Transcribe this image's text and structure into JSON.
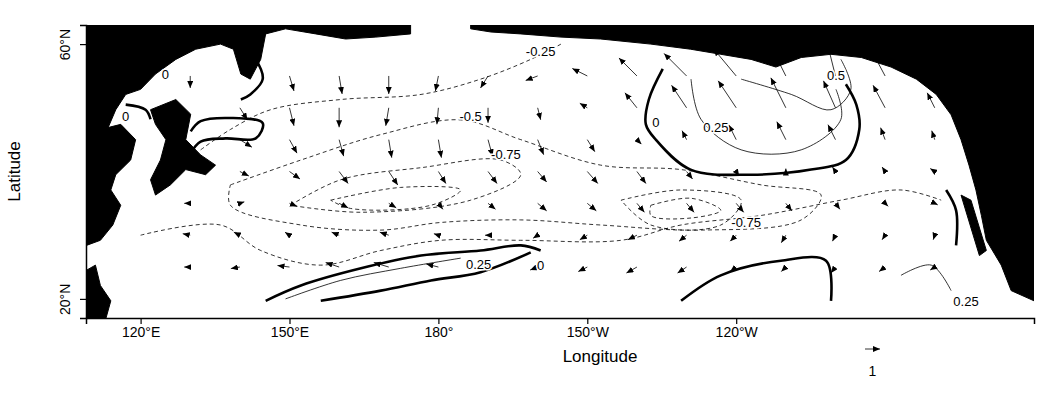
{
  "chart_data": {
    "type": "contour",
    "x_label": "Longitude",
    "y_label": "Latitude",
    "xlim": [
      109,
      300
    ],
    "ylim": [
      17,
      63
    ],
    "xticks": [
      {
        "value": 120,
        "label": "120°E"
      },
      {
        "value": 150,
        "label": "150°E"
      },
      {
        "value": 180,
        "label": "180°"
      },
      {
        "value": 210,
        "label": "150°W"
      },
      {
        "value": 240,
        "label": "120°W"
      }
    ],
    "yticks": [
      {
        "value": 20,
        "label": "20°N"
      },
      {
        "value": 60,
        "label": "60°N"
      }
    ],
    "reference_vector": 1,
    "land": [
      [
        [
          109.1,
          63.2
        ],
        [
          174.4,
          63.2
        ],
        [
          174.4,
          61.6
        ],
        [
          167.4,
          61.1
        ],
        [
          161.3,
          60.8
        ],
        [
          155.3,
          61.6
        ],
        [
          149.2,
          62.4
        ],
        [
          145.2,
          61.6
        ],
        [
          144.2,
          57.6
        ],
        [
          142.1,
          54.5
        ],
        [
          140.2,
          55.3
        ],
        [
          138.7,
          59.2
        ],
        [
          136.1,
          60
        ],
        [
          131.1,
          59.2
        ],
        [
          127.1,
          57.6
        ],
        [
          123,
          55.3
        ],
        [
          120,
          52.9
        ],
        [
          117,
          52.1
        ],
        [
          115,
          49.7
        ],
        [
          113.3,
          46.6
        ],
        [
          109.1,
          45.8
        ]
      ],
      [
        [
          122,
          49.7
        ],
        [
          127.1,
          51.3
        ],
        [
          130.1,
          49
        ],
        [
          129.1,
          45
        ],
        [
          132.1,
          42.6
        ],
        [
          135.1,
          41
        ],
        [
          133.1,
          39.5
        ],
        [
          129.1,
          40.3
        ],
        [
          126,
          37.9
        ],
        [
          123,
          36.3
        ],
        [
          122,
          38.7
        ],
        [
          124,
          41.8
        ],
        [
          125.1,
          45
        ],
        [
          123,
          47.4
        ]
      ],
      [
        [
          109.1,
          45.8
        ],
        [
          111.9,
          46.6
        ],
        [
          116,
          47.4
        ],
        [
          119,
          45
        ],
        [
          118,
          41.8
        ],
        [
          115,
          39.5
        ],
        [
          114,
          37.1
        ],
        [
          116,
          34.7
        ],
        [
          114.4,
          31.6
        ],
        [
          111.9,
          29.2
        ],
        [
          109.1,
          28.4
        ]
      ],
      [
        [
          109.1,
          24.5
        ],
        [
          110.9,
          25.3
        ],
        [
          111.9,
          22.1
        ],
        [
          114,
          19.7
        ],
        [
          113,
          16.9
        ],
        [
          109.1,
          16.9
        ]
      ],
      [
        [
          186.5,
          63.2
        ],
        [
          300,
          63.2
        ],
        [
          300,
          19.7
        ],
        [
          295.4,
          21.3
        ],
        [
          293.4,
          25.3
        ],
        [
          290.4,
          29.2
        ],
        [
          289.4,
          33.1
        ],
        [
          288.3,
          37.1
        ],
        [
          286.9,
          41
        ],
        [
          285.3,
          45
        ],
        [
          283.3,
          48.9
        ],
        [
          280.3,
          52.1
        ],
        [
          276.3,
          54.5
        ],
        [
          271.2,
          56.4
        ],
        [
          265.2,
          57.9
        ],
        [
          259.1,
          58.4
        ],
        [
          253.1,
          57.9
        ],
        [
          248,
          56.4
        ],
        [
          243,
          57.6
        ],
        [
          236.9,
          58.4
        ],
        [
          230.8,
          59.2
        ],
        [
          222.8,
          60
        ],
        [
          212.7,
          60.8
        ],
        [
          204.7,
          61.1
        ],
        [
          196.6,
          61.6
        ],
        [
          190.6,
          61.9
        ],
        [
          186.5,
          62.4
        ]
      ],
      [
        [
          285.3,
          36.3
        ],
        [
          287.3,
          35.5
        ],
        [
          290.4,
          27.6
        ],
        [
          289,
          26.8
        ]
      ]
    ],
    "contours": [
      {
        "level": -0.25,
        "points": [
          [
            120,
            30
          ],
          [
            136.1,
            31.6
          ],
          [
            144.2,
            27.6
          ],
          [
            156.3,
            25.3
          ],
          [
            168.4,
            27.6
          ],
          [
            180.5,
            29.2
          ],
          [
            196.6,
            29.2
          ],
          [
            216.8,
            29.2
          ],
          [
            228.9,
            31.6
          ],
          [
            245,
            33.1
          ],
          [
            261.1,
            35.5
          ],
          [
            273.2,
            37.1
          ],
          [
            281.3,
            35.5
          ]
        ]
      },
      {
        "level": -0.25,
        "points": [
          [
            132.1,
            43.4
          ],
          [
            138.1,
            46.6
          ],
          [
            146.2,
            49.7
          ],
          [
            160.3,
            51.3
          ],
          [
            176.5,
            52.1
          ],
          [
            188.5,
            54.5
          ],
          [
            198.6,
            57.6
          ],
          [
            204.7,
            60
          ]
        ]
      },
      {
        "level": -0.5,
        "points": [
          [
            138.1,
            37.9
          ],
          [
            152.3,
            41.8
          ],
          [
            168.4,
            45.8
          ],
          [
            184.5,
            48.1
          ],
          [
            196.6,
            45
          ],
          [
            212.7,
            41
          ],
          [
            228.9,
            40.3
          ],
          [
            245,
            37.9
          ],
          [
            257.1,
            36.3
          ],
          [
            253.1,
            32.4
          ],
          [
            232.9,
            30.8
          ],
          [
            212.7,
            31.6
          ],
          [
            196.6,
            32.4
          ],
          [
            180.5,
            32
          ],
          [
            168.4,
            30.8
          ],
          [
            152.3,
            31.6
          ],
          [
            138.1,
            34.7
          ],
          [
            138.1,
            37.9
          ]
        ]
      },
      {
        "level": -0.75,
        "points": [
          [
            150.2,
            34.7
          ],
          [
            160.3,
            38.7
          ],
          [
            176.5,
            40.6
          ],
          [
            192.6,
            41.8
          ],
          [
            196.6,
            39.5
          ],
          [
            186.5,
            35.5
          ],
          [
            164.4,
            33.6
          ],
          [
            150.2,
            34.7
          ]
        ]
      },
      {
        "level": -0.75,
        "points": [
          [
            216.8,
            35.5
          ],
          [
            228.9,
            37.1
          ],
          [
            241,
            35.5
          ],
          [
            236.9,
            31.6
          ],
          [
            222.8,
            31.6
          ],
          [
            216.8,
            35.5
          ]
        ]
      },
      {
        "level": -1,
        "points": [
          [
            158.3,
            35.5
          ],
          [
            172.4,
            37.5
          ],
          [
            184.5,
            37.1
          ],
          [
            178.5,
            34.7
          ],
          [
            162.3,
            34.2
          ],
          [
            158.3,
            35.5
          ]
        ]
      },
      {
        "level": -1,
        "points": [
          [
            222.8,
            34.7
          ],
          [
            230.9,
            35.8
          ],
          [
            236.9,
            33.9
          ],
          [
            230.9,
            32.7
          ],
          [
            222.8,
            33.1
          ],
          [
            222.8,
            34.7
          ]
        ]
      },
      {
        "level": 0,
        "points": [
          [
            140.2,
            60
          ],
          [
            143.2,
            57.6
          ],
          [
            144.6,
            54.5
          ],
          [
            142.1,
            52.1
          ],
          [
            140.2,
            51.3
          ]
        ]
      },
      {
        "level": 0,
        "points": [
          [
            129.1,
            60.8
          ],
          [
            127.1,
            59.2
          ],
          [
            126,
            58.1
          ]
        ]
      },
      {
        "level": 0,
        "points": [
          [
            117,
            50.5
          ],
          [
            121,
            49.7
          ],
          [
            122,
            48.2
          ]
        ]
      },
      {
        "level": 0,
        "points": [
          [
            130.1,
            46.3
          ],
          [
            132.1,
            47.9
          ],
          [
            138.1,
            48.4
          ],
          [
            144.6,
            47.6
          ],
          [
            143.2,
            45.2
          ],
          [
            137.1,
            45.2
          ],
          [
            132.1,
            44.7
          ],
          [
            130.1,
            42.9
          ]
        ]
      },
      {
        "level": 0,
        "points": [
          [
            225.2,
            56.1
          ],
          [
            222.4,
            51.3
          ],
          [
            221.8,
            47.4
          ],
          [
            223.8,
            45
          ],
          [
            230.8,
            40.3
          ],
          [
            243,
            39.5
          ],
          [
            255.1,
            40.3
          ],
          [
            262.1,
            41.8
          ],
          [
            264.8,
            46.6
          ],
          [
            264.2,
            50.5
          ],
          [
            262.1,
            53.7
          ]
        ]
      },
      {
        "level": 0,
        "points": [
          [
            145.2,
            19.7
          ],
          [
            152.3,
            22.1
          ],
          [
            164.4,
            24.8
          ],
          [
            176.5,
            26.8
          ],
          [
            188.5,
            27.6
          ],
          [
            196.6,
            28.4
          ],
          [
            200.6,
            27.6
          ]
        ]
      },
      {
        "level": 0,
        "points": [
          [
            156.3,
            19.7
          ],
          [
            168.4,
            21.3
          ],
          [
            178.5,
            22.9
          ],
          [
            188.5,
            24.2
          ],
          [
            198.6,
            27.3
          ]
        ]
      },
      {
        "level": 0,
        "points": [
          [
            228.9,
            19.7
          ],
          [
            236.9,
            23.7
          ],
          [
            249,
            26
          ],
          [
            258.1,
            26
          ],
          [
            259.1,
            19.7
          ]
        ]
      },
      {
        "level": 0,
        "points": [
          [
            282.3,
            37.1
          ],
          [
            284.3,
            33.9
          ],
          [
            284.3,
            28.4
          ]
        ]
      },
      {
        "level": 0.25,
        "points": [
          [
            230.9,
            54.5
          ],
          [
            232.9,
            48.2
          ],
          [
            241,
            43.4
          ],
          [
            253.1,
            43.4
          ],
          [
            261.1,
            48.2
          ],
          [
            260.1,
            52.9
          ]
        ]
      },
      {
        "level": 0.25,
        "points": [
          [
            149.2,
            20
          ],
          [
            160.3,
            22.9
          ],
          [
            172.4,
            24.8
          ],
          [
            184.5,
            26.4
          ]
        ]
      },
      {
        "level": 0.25,
        "points": [
          [
            273.2,
            23.7
          ],
          [
            279.3,
            25.3
          ],
          [
            283.3,
            21.3
          ]
        ]
      },
      {
        "level": 0.5,
        "points": [
          [
            241,
            54.5
          ],
          [
            251.1,
            52.1
          ],
          [
            259.1,
            49.7
          ],
          [
            263.1,
            52.9
          ],
          [
            261.1,
            57.6
          ]
        ]
      }
    ],
    "contour_labels": [
      {
        "label": "-0.25",
        "lon": 200.6,
        "lat": 58.9
      },
      {
        "label": "-0.5",
        "lon": 186.5,
        "lat": 48.6
      },
      {
        "label": "-0.75",
        "lon": 193.6,
        "lat": 42.6
      },
      {
        "label": "-0.75",
        "lon": 242,
        "lat": 32
      },
      {
        "label": "0",
        "lon": 125,
        "lat": 55.3
      },
      {
        "label": "0",
        "lon": 117,
        "lat": 48.6
      },
      {
        "label": "0",
        "lon": 223.8,
        "lat": 47.7
      },
      {
        "label": "0.25",
        "lon": 235.9,
        "lat": 46.9
      },
      {
        "label": "0.5",
        "lon": 260.1,
        "lat": 55
      },
      {
        "label": "0.25",
        "lon": 188.1,
        "lat": 25.4
      },
      {
        "label": "0",
        "lon": 200.6,
        "lat": 25.3
      },
      {
        "label": "0.25",
        "lon": 286.3,
        "lat": 19.6
      }
    ],
    "vectors": {
      "lon": [
        130,
        140,
        150,
        160,
        170,
        180,
        190,
        200,
        210,
        220,
        230,
        240,
        250,
        260,
        270,
        280
      ],
      "lat": [
        55,
        50,
        45,
        40,
        35,
        30,
        25
      ],
      "u": [
        [
          0,
          null,
          0.3,
          0.2,
          0,
          -0.2,
          -0.5,
          -0.8,
          -1.0,
          -1.2,
          -1.5,
          -1.5,
          -1.0,
          -0.5,
          -0.8,
          null
        ],
        [
          null,
          0.5,
          0.3,
          0,
          -0.2,
          -0.1,
          0,
          0.2,
          -0.5,
          -0.8,
          -1.0,
          -1.2,
          -1.0,
          -0.8,
          -0.8,
          -0.5
        ],
        [
          null,
          0.8,
          0.5,
          0.3,
          0.2,
          0.2,
          0.3,
          0.4,
          0.5,
          0.3,
          -0.3,
          -0.5,
          -0.6,
          -0.5,
          -0.3,
          -0.2
        ],
        [
          null,
          0.6,
          0.7,
          0.6,
          0.6,
          0.5,
          0.6,
          0.6,
          0.7,
          0.6,
          0.4,
          0.2,
          0.0,
          -0.2,
          -0.2,
          -0.3
        ],
        [
          -0.4,
          0.3,
          0.5,
          0.6,
          0.5,
          0.3,
          0.5,
          0.6,
          0.6,
          0.5,
          0.5,
          0.5,
          0.4,
          0.3,
          0.2,
          0.2
        ],
        [
          -0.5,
          -0.4,
          -0.3,
          -0.5,
          -0.6,
          -0.3,
          -0.2,
          -0.3,
          -0.5,
          -0.6,
          -0.5,
          -0.4,
          -0.3,
          -0.2,
          -0.2,
          -0.1
        ],
        [
          -0.4,
          -0.6,
          -0.8,
          -0.9,
          -1.0,
          -0.8,
          -0.5,
          -0.5,
          -0.6,
          -0.7,
          -0.6,
          -0.4,
          -0.3,
          -0.3,
          -0.4,
          -0.3
        ]
      ],
      "v": [
        [
          -0.8,
          null,
          -1.0,
          -1.2,
          -1.2,
          -1.0,
          -0.8,
          -0.3,
          0.5,
          1.2,
          1.5,
          1.8,
          2.0,
          2.0,
          1.5,
          null
        ],
        [
          null,
          -0.8,
          -1.2,
          -1.3,
          -1.2,
          -1.1,
          -1.0,
          -0.8,
          0.3,
          1.0,
          1.5,
          1.8,
          2.0,
          1.8,
          1.5,
          1.0
        ],
        [
          null,
          -0.5,
          -0.9,
          -1.1,
          -1.2,
          -1.2,
          -1.1,
          -1.0,
          -0.8,
          -0.3,
          0.6,
          1.0,
          1.2,
          1.0,
          0.8,
          0.6
        ],
        [
          null,
          -0.3,
          -0.5,
          -0.8,
          -0.9,
          -0.8,
          -0.8,
          -0.7,
          -0.8,
          -0.8,
          -0.5,
          -0.3,
          0.2,
          0.3,
          0.3,
          0.2
        ],
        [
          0.0,
          0.1,
          -0.2,
          -0.3,
          -0.3,
          -0.4,
          -0.4,
          -0.5,
          -0.5,
          -0.6,
          -0.6,
          -0.6,
          -0.5,
          -0.4,
          -0.2,
          -0.1
        ],
        [
          0.1,
          0.2,
          0.2,
          0.2,
          0.2,
          0.1,
          0,
          -0.2,
          -0.3,
          -0.3,
          -0.4,
          -0.4,
          -0.5,
          -0.4,
          -0.3,
          -0.3
        ],
        [
          0.0,
          -0.1,
          0.1,
          0.3,
          0.3,
          0.2,
          0.0,
          -0.2,
          -0.3,
          -0.4,
          -0.4,
          -0.3,
          -0.3,
          -0.4,
          -0.3,
          -0.2
        ]
      ]
    }
  }
}
